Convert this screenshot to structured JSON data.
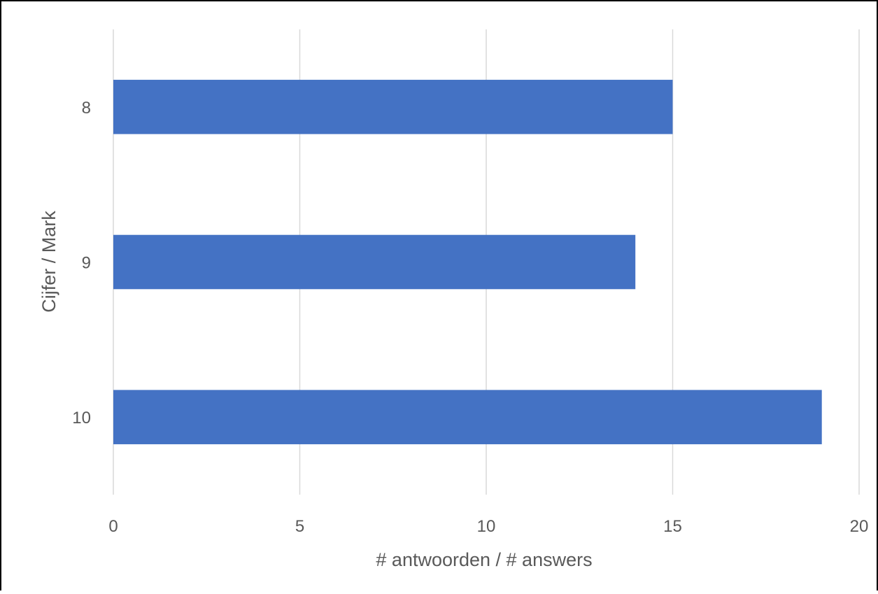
{
  "chart_data": {
    "type": "bar",
    "orientation": "horizontal",
    "categories": [
      "8",
      "9",
      "10"
    ],
    "values": [
      15,
      14,
      19
    ],
    "xlabel": "# antwoorden / # answers",
    "ylabel": "Cijfer / Mark",
    "xlim": [
      0,
      20
    ],
    "xticks": [
      "0",
      "5",
      "10",
      "15",
      "20"
    ],
    "grid": "vertical",
    "legend": "none",
    "bar_color": "#4472C4",
    "grid_color": "#D9D9D9"
  }
}
